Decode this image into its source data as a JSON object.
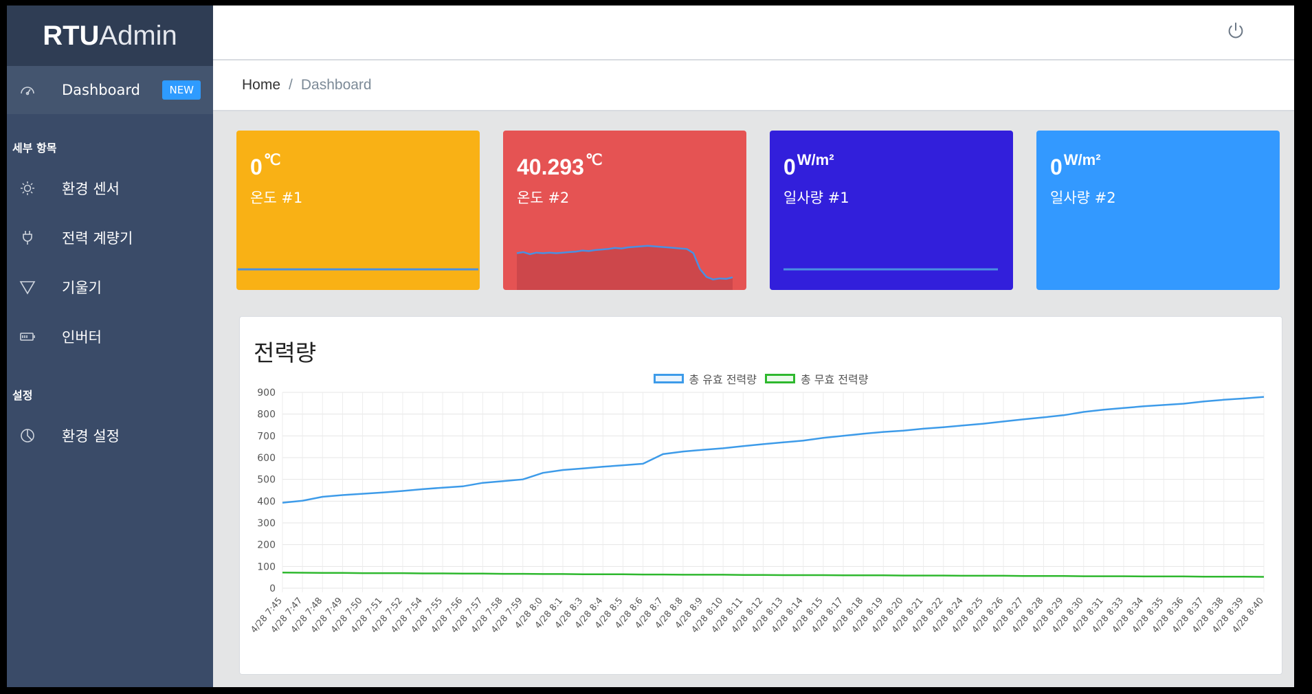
{
  "brand": {
    "bold": "RTU",
    "rest": "Admin"
  },
  "sidebar": {
    "active": {
      "label": "Dashboard",
      "badge": "NEW",
      "icon": "speedometer-icon"
    },
    "section1": "세부 항목",
    "items": [
      {
        "label": "환경 센서",
        "icon": "sun-icon"
      },
      {
        "label": "전력 계량기",
        "icon": "plug-icon"
      },
      {
        "label": "기울기",
        "icon": "triangle-icon"
      },
      {
        "label": "인버터",
        "icon": "battery-icon"
      }
    ],
    "section2": "설정",
    "settings": {
      "label": "환경 설정",
      "icon": "pie-icon"
    }
  },
  "topbar": {
    "icon": "power-icon"
  },
  "breadcrumb": {
    "home": "Home",
    "sep": "/",
    "current": "Dashboard"
  },
  "cards": [
    {
      "value": "0",
      "unit": "℃",
      "label": "온도 #1",
      "color": "#f9b115"
    },
    {
      "value": "40.293",
      "unit": "℃",
      "label": "온도 #2",
      "color": "#e55353"
    },
    {
      "value": "0",
      "unit": "W/m²",
      "label": "일사량 #1",
      "color": "#321fdb"
    },
    {
      "value": "0",
      "unit": "W/m²",
      "label": "일사량 #2",
      "color": "#3399ff"
    }
  ],
  "chart_data": {
    "type": "line",
    "title": "전력량",
    "ylim": [
      0,
      900
    ],
    "yticks": [
      "0",
      "100",
      "200",
      "300",
      "400",
      "500",
      "600",
      "700",
      "800",
      "900"
    ],
    "categories": [
      "4/28 7:45",
      "4/28 7:47",
      "4/28 7:48",
      "4/28 7:49",
      "4/28 7:50",
      "4/28 7:51",
      "4/28 7:52",
      "4/28 7:54",
      "4/28 7:55",
      "4/28 7:56",
      "4/28 7:57",
      "4/28 7:58",
      "4/28 7:59",
      "4/28 8:0",
      "4/28 8:1",
      "4/28 8:3",
      "4/28 8:4",
      "4/28 8:5",
      "4/28 8:6",
      "4/28 8:7",
      "4/28 8:8",
      "4/28 8:9",
      "4/28 8:10",
      "4/28 8:11",
      "4/28 8:12",
      "4/28 8:13",
      "4/28 8:14",
      "4/28 8:15",
      "4/28 8:17",
      "4/28 8:18",
      "4/28 8:19",
      "4/28 8:20",
      "4/28 8:21",
      "4/28 8:22",
      "4/28 8:24",
      "4/28 8:25",
      "4/28 8:26",
      "4/28 8:27",
      "4/28 8:28",
      "4/28 8:29",
      "4/28 8:30",
      "4/28 8:31",
      "4/28 8:33",
      "4/28 8:34",
      "4/28 8:35",
      "4/28 8:36",
      "4/28 8:37",
      "4/28 8:38",
      "4/28 8:39",
      "4/28 8:40"
    ],
    "series": [
      {
        "name": "총 유효 전력량",
        "color": "#3d9be9",
        "values": [
          393,
          402,
          420,
          428,
          434,
          440,
          447,
          455,
          462,
          468,
          484,
          492,
          500,
          530,
          543,
          550,
          558,
          565,
          572,
          616,
          628,
          636,
          643,
          653,
          662,
          670,
          678,
          691,
          700,
          710,
          718,
          724,
          733,
          740,
          748,
          756,
          766,
          776,
          785,
          795,
          810,
          820,
          828,
          836,
          842,
          848,
          858,
          866,
          872,
          879
        ]
      },
      {
        "name": "총 무효 전력량",
        "color": "#2eb82e",
        "values": [
          72,
          71,
          70,
          70,
          69,
          69,
          69,
          68,
          68,
          67,
          67,
          66,
          66,
          65,
          65,
          64,
          64,
          64,
          63,
          63,
          62,
          62,
          62,
          61,
          61,
          60,
          60,
          60,
          59,
          59,
          59,
          58,
          58,
          58,
          57,
          57,
          57,
          56,
          56,
          56,
          55,
          55,
          55,
          54,
          54,
          54,
          53,
          53,
          53,
          52
        ]
      }
    ],
    "legend": "top",
    "grid": true
  },
  "sparkline_temp2": [
    70,
    72,
    68,
    71,
    70,
    71,
    70,
    71,
    72,
    73,
    75,
    74,
    76,
    77,
    78,
    80,
    79,
    81,
    82,
    83,
    84,
    83,
    82,
    81,
    80,
    79,
    78,
    70,
    40,
    25,
    20,
    22,
    21,
    24
  ]
}
